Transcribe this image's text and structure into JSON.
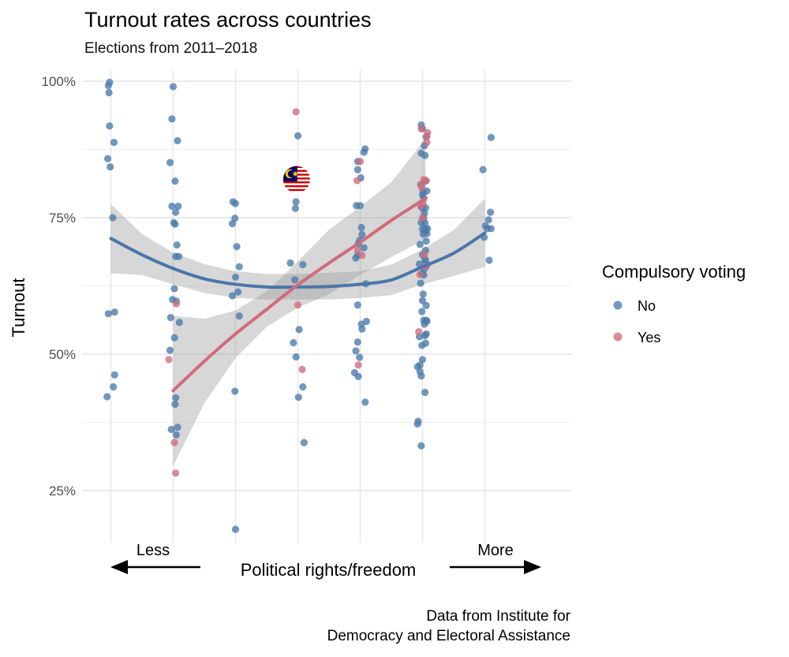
{
  "chart_data": {
    "type": "scatter",
    "title": "Turnout rates across countries",
    "subtitle": "Elections from 2011–2018",
    "ylabel": "Turnout",
    "xlabel": "Political rights/freedom",
    "x_left_label": "Less",
    "x_right_label": "More",
    "ylim": [
      0.15,
      1.02
    ],
    "xlim": [
      0.3,
      7.3
    ],
    "y_ticks": [
      0.25,
      0.5,
      0.75,
      1.0
    ],
    "y_tick_labels": [
      "25%",
      "50%",
      "75%",
      "100%"
    ],
    "x_ticks": [
      1,
      2,
      3,
      4,
      5,
      6,
      7
    ],
    "caption": [
      "Data from Institute for",
      "Democracy and Electoral Assistance"
    ],
    "grid": true,
    "legend": {
      "title": "Compulsory voting",
      "position": "right",
      "entries": [
        {
          "label": "No",
          "color": "#4a7aab"
        },
        {
          "label": "Yes",
          "color": "#d06b7c"
        }
      ]
    },
    "highlight": {
      "label": "Malaysia flag marker",
      "x": 3.98,
      "y": 0.82
    },
    "series": [
      {
        "name": "No",
        "color": "#4a7aab",
        "points": [
          [
            0.96,
            0.992
          ],
          [
            0.98,
            0.998
          ],
          [
            0.97,
            0.979
          ],
          [
            0.98,
            0.918
          ],
          [
            1.05,
            0.888
          ],
          [
            0.95,
            0.858
          ],
          [
            0.99,
            0.843
          ],
          [
            1.03,
            0.75
          ],
          [
            0.96,
            0.574
          ],
          [
            1.06,
            0.577
          ],
          [
            1.06,
            0.462
          ],
          [
            1.04,
            0.44
          ],
          [
            0.94,
            0.422
          ],
          [
            2.0,
            0.99
          ],
          [
            1.98,
            0.931
          ],
          [
            2.07,
            0.891
          ],
          [
            1.95,
            0.851
          ],
          [
            2.03,
            0.817
          ],
          [
            1.98,
            0.771
          ],
          [
            2.08,
            0.771
          ],
          [
            2.04,
            0.76
          ],
          [
            2.01,
            0.741
          ],
          [
            2.03,
            0.738
          ],
          [
            2.06,
            0.7
          ],
          [
            2.04,
            0.679
          ],
          [
            2.09,
            0.679
          ],
          [
            2.02,
            0.62
          ],
          [
            1.99,
            0.6
          ],
          [
            2.05,
            0.597
          ],
          [
            2.1,
            0.558
          ],
          [
            1.96,
            0.567
          ],
          [
            2.02,
            0.53
          ],
          [
            1.95,
            0.507
          ],
          [
            2.04,
            0.42
          ],
          [
            2.03,
            0.408
          ],
          [
            2.07,
            0.366
          ],
          [
            1.97,
            0.362
          ],
          [
            2.05,
            0.352
          ],
          [
            2.96,
            0.779
          ],
          [
            3.0,
            0.776
          ],
          [
            2.99,
            0.749
          ],
          [
            2.95,
            0.739
          ],
          [
            3.02,
            0.697
          ],
          [
            3.0,
            0.641
          ],
          [
            3.06,
            0.66
          ],
          [
            3.04,
            0.614
          ],
          [
            2.95,
            0.607
          ],
          [
            3.06,
            0.57
          ],
          [
            2.99,
            0.432
          ],
          [
            3.0,
            0.179
          ],
          [
            3.88,
            0.667
          ],
          [
            3.95,
            0.636
          ],
          [
            4.0,
            0.9
          ],
          [
            3.97,
            0.779
          ],
          [
            3.96,
            0.767
          ],
          [
            4.08,
            0.664
          ],
          [
            4.02,
            0.545
          ],
          [
            3.93,
            0.521
          ],
          [
            3.97,
            0.495
          ],
          [
            4.08,
            0.44
          ],
          [
            4.01,
            0.421
          ],
          [
            4.1,
            0.338
          ],
          [
            5.08,
            0.876
          ],
          [
            5.06,
            0.87
          ],
          [
            4.96,
            0.853
          ],
          [
            4.96,
            0.838
          ],
          [
            5.01,
            0.823
          ],
          [
            5.0,
            0.772
          ],
          [
            4.94,
            0.772
          ],
          [
            5.02,
            0.732
          ],
          [
            5.03,
            0.719
          ],
          [
            4.99,
            0.708
          ],
          [
            4.97,
            0.702
          ],
          [
            5.06,
            0.695
          ],
          [
            4.96,
            0.681
          ],
          [
            4.93,
            0.676
          ],
          [
            5.09,
            0.629
          ],
          [
            4.96,
            0.59
          ],
          [
            5.1,
            0.56
          ],
          [
            5.02,
            0.555
          ],
          [
            5.03,
            0.546
          ],
          [
            4.96,
            0.522
          ],
          [
            4.93,
            0.506
          ],
          [
            4.99,
            0.494
          ],
          [
            4.91,
            0.466
          ],
          [
            4.97,
            0.459
          ],
          [
            5.08,
            0.412
          ],
          [
            6.06,
            0.898
          ],
          [
            6.03,
            0.882
          ],
          [
            5.98,
            0.809
          ],
          [
            6.0,
            0.792
          ],
          [
            6.05,
            0.768
          ],
          [
            5.99,
            0.768
          ],
          [
            6.02,
            0.749
          ],
          [
            6.0,
            0.729
          ],
          [
            6.05,
            0.729
          ],
          [
            6.07,
            0.721
          ],
          [
            6.05,
            0.67
          ],
          [
            5.95,
            0.665
          ],
          [
            6.02,
            0.645
          ],
          [
            6.06,
            0.589
          ],
          [
            5.99,
            0.578
          ],
          [
            6.06,
            0.562
          ],
          [
            6.07,
            0.56
          ],
          [
            6.06,
            0.537
          ],
          [
            5.96,
            0.48
          ],
          [
            5.92,
            0.477
          ],
          [
            5.93,
            0.377
          ],
          [
            5.92,
            0.372
          ],
          [
            5.98,
            0.92
          ],
          [
            6.0,
            0.913
          ],
          [
            5.98,
            0.868
          ],
          [
            6.04,
            0.864
          ],
          [
            6.05,
            0.817
          ],
          [
            6.07,
            0.799
          ],
          [
            6.01,
            0.797
          ],
          [
            6.02,
            0.785
          ],
          [
            6.03,
            0.758
          ],
          [
            5.98,
            0.741
          ],
          [
            6.04,
            0.74
          ],
          [
            6.08,
            0.73
          ],
          [
            6.05,
            0.726
          ],
          [
            6.01,
            0.72
          ],
          [
            6.06,
            0.707
          ],
          [
            5.96,
            0.701
          ],
          [
            6.05,
            0.69
          ],
          [
            6.0,
            0.682
          ],
          [
            6.04,
            0.674
          ],
          [
            6.07,
            0.663
          ],
          [
            6.03,
            0.656
          ],
          [
            5.99,
            0.648
          ],
          [
            5.97,
            0.63
          ],
          [
            6.01,
            0.61
          ],
          [
            6.0,
            0.598
          ],
          [
            6.02,
            0.562
          ],
          [
            6.03,
            0.555
          ],
          [
            6.04,
            0.534
          ],
          [
            5.95,
            0.532
          ],
          [
            6.05,
            0.52
          ],
          [
            5.99,
            0.516
          ],
          [
            6.0,
            0.49
          ],
          [
            5.96,
            0.468
          ],
          [
            5.98,
            0.46
          ],
          [
            6.04,
            0.43
          ],
          [
            5.98,
            0.332
          ],
          [
            7.1,
            0.897
          ],
          [
            6.97,
            0.838
          ],
          [
            7.09,
            0.76
          ],
          [
            7.06,
            0.746
          ],
          [
            7.04,
            0.73
          ],
          [
            7.1,
            0.73
          ],
          [
            7.01,
            0.735
          ],
          [
            6.99,
            0.714
          ],
          [
            7.07,
            0.672
          ]
        ]
      },
      {
        "name": "Yes",
        "color": "#d06b7c",
        "points": [
          [
            1.93,
            0.49
          ],
          [
            2.05,
            0.592
          ],
          [
            2.02,
            0.338
          ],
          [
            2.04,
            0.282
          ],
          [
            3.97,
            0.944
          ],
          [
            4.0,
            0.59
          ],
          [
            4.07,
            0.472
          ],
          [
            5.0,
            0.853
          ],
          [
            4.95,
            0.818
          ],
          [
            4.96,
            0.69
          ],
          [
            5.03,
            0.681
          ],
          [
            4.97,
            0.48
          ],
          [
            5.97,
            0.811
          ],
          [
            6.02,
            0.82
          ],
          [
            6.06,
            0.818
          ],
          [
            5.99,
            0.805
          ],
          [
            6.01,
            0.776
          ],
          [
            5.97,
            0.771
          ],
          [
            6.0,
            0.75
          ],
          [
            5.96,
            0.646
          ],
          [
            5.94,
            0.541
          ],
          [
            5.98,
            0.913
          ],
          [
            6.08,
            0.906
          ],
          [
            6.07,
            0.899
          ],
          [
            6.07,
            0.888
          ],
          [
            6.03,
            0.682
          ],
          [
            6.06,
            0.661
          ]
        ]
      }
    ],
    "trend_lines": [
      {
        "name": "No",
        "color": "#4a76aa",
        "points": [
          [
            1.0,
            0.712
          ],
          [
            1.5,
            0.682
          ],
          [
            2.0,
            0.657
          ],
          [
            2.5,
            0.638
          ],
          [
            3.0,
            0.628
          ],
          [
            3.5,
            0.623
          ],
          [
            4.0,
            0.623
          ],
          [
            4.5,
            0.624
          ],
          [
            5.0,
            0.628
          ],
          [
            5.5,
            0.636
          ],
          [
            6.0,
            0.66
          ],
          [
            6.5,
            0.685
          ],
          [
            7.0,
            0.722
          ]
        ],
        "band_upper": [
          [
            1.0,
            0.775
          ],
          [
            1.5,
            0.72
          ],
          [
            2.0,
            0.686
          ],
          [
            2.5,
            0.665
          ],
          [
            3.0,
            0.652
          ],
          [
            3.5,
            0.647
          ],
          [
            4.0,
            0.647
          ],
          [
            4.5,
            0.649
          ],
          [
            5.0,
            0.652
          ],
          [
            5.5,
            0.664
          ],
          [
            6.0,
            0.692
          ],
          [
            6.5,
            0.727
          ],
          [
            7.0,
            0.785
          ]
        ],
        "band_lower": [
          [
            1.0,
            0.648
          ],
          [
            1.5,
            0.645
          ],
          [
            2.0,
            0.628
          ],
          [
            2.5,
            0.612
          ],
          [
            3.0,
            0.603
          ],
          [
            3.5,
            0.6
          ],
          [
            4.0,
            0.6
          ],
          [
            4.5,
            0.6
          ],
          [
            5.0,
            0.603
          ],
          [
            5.5,
            0.608
          ],
          [
            6.0,
            0.628
          ],
          [
            6.5,
            0.643
          ],
          [
            7.0,
            0.66
          ]
        ]
      },
      {
        "name": "Yes",
        "color": "#d06b7c",
        "points": [
          [
            2.0,
            0.433
          ],
          [
            2.5,
            0.487
          ],
          [
            3.0,
            0.537
          ],
          [
            3.5,
            0.582
          ],
          [
            4.0,
            0.627
          ],
          [
            4.5,
            0.667
          ],
          [
            5.0,
            0.705
          ],
          [
            5.5,
            0.745
          ],
          [
            6.0,
            0.782
          ],
          [
            6.05,
            0.787
          ]
        ],
        "band_upper": [
          [
            2.0,
            0.57
          ],
          [
            2.5,
            0.565
          ],
          [
            3.0,
            0.58
          ],
          [
            3.5,
            0.615
          ],
          [
            4.0,
            0.67
          ],
          [
            4.5,
            0.728
          ],
          [
            5.0,
            0.77
          ],
          [
            5.5,
            0.815
          ],
          [
            6.0,
            0.888
          ],
          [
            6.05,
            0.905
          ]
        ],
        "band_lower": [
          [
            2.0,
            0.295
          ],
          [
            2.5,
            0.41
          ],
          [
            3.0,
            0.493
          ],
          [
            3.5,
            0.55
          ],
          [
            4.0,
            0.585
          ],
          [
            4.5,
            0.61
          ],
          [
            5.0,
            0.645
          ],
          [
            5.5,
            0.678
          ],
          [
            6.0,
            0.708
          ],
          [
            6.05,
            0.71
          ]
        ]
      }
    ]
  }
}
